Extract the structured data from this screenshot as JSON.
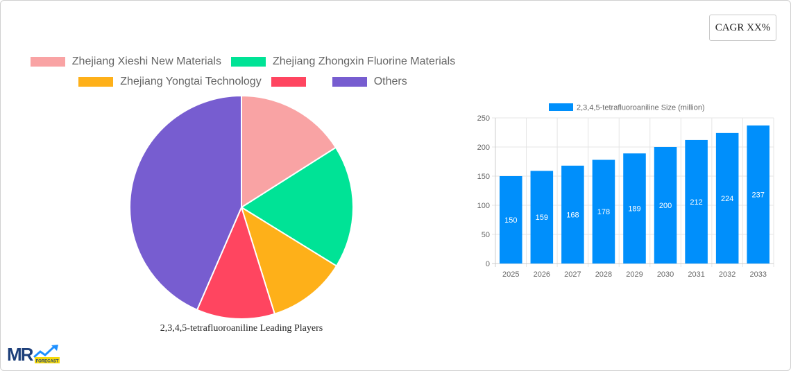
{
  "cagr_label": "CAGR XX%",
  "colors": {
    "pie": [
      "#f9a3a4",
      "#00e396",
      "#feb019",
      "#ff4560",
      "#775dd0"
    ],
    "bar": "#008ffb"
  },
  "pie_legend": [
    {
      "label": "Zhejiang Xieshi New Materials",
      "color": "#f9a3a4"
    },
    {
      "label": "Zhejiang Zhongxin Fluorine Materials",
      "color": "#00e396"
    },
    {
      "label": "Zhejiang Yongtai Technology",
      "color": "#feb019"
    },
    {
      "label": "",
      "color": "#ff4560"
    },
    {
      "label": "Others",
      "color": "#775dd0"
    }
  ],
  "pie_title": "2,3,4,5-tetrafluoroaniline Leading Players",
  "bar_legend": "2,3,4,5-tetrafluoroaniline Size (million)",
  "logo": {
    "text": "MR",
    "badge": "FORECAST"
  },
  "chart_data": [
    {
      "type": "pie",
      "title": "2,3,4,5-tetrafluoroaniline Leading Players",
      "categories": [
        "Zhejiang Xieshi New Materials",
        "Zhejiang Zhongxin Fluorine Materials",
        "Zhejiang Yongtai Technology",
        "",
        "Others"
      ],
      "values": [
        16.0,
        17.8,
        11.4,
        11.3,
        43.5
      ],
      "legend_position": "top"
    },
    {
      "type": "bar",
      "title": "",
      "categories": [
        "2025",
        "2026",
        "2027",
        "2028",
        "2029",
        "2030",
        "2031",
        "2032",
        "2033"
      ],
      "series": [
        {
          "name": "2,3,4,5-tetrafluoroaniline Size (million)",
          "values": [
            150,
            159,
            168,
            178,
            189,
            200,
            212,
            224,
            237
          ]
        }
      ],
      "xlabel": "",
      "ylabel": "",
      "ylim": [
        0,
        250
      ],
      "yticks": [
        0,
        50,
        100,
        150,
        200,
        250
      ],
      "grid": true,
      "legend_position": "top",
      "data_labels": true
    }
  ]
}
